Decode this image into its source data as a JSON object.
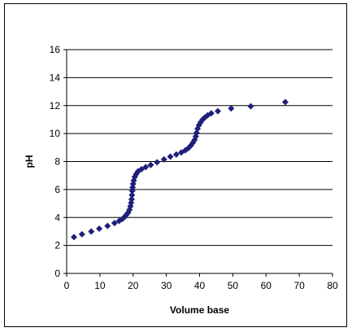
{
  "chart_data": {
    "type": "scatter",
    "title": "",
    "xlabel": "Volume base",
    "ylabel": "pH",
    "xlim": [
      0,
      80
    ],
    "ylim": [
      0,
      16
    ],
    "x_ticks": [
      0,
      10,
      20,
      30,
      40,
      50,
      60,
      70,
      80
    ],
    "y_ticks": [
      0,
      2,
      4,
      6,
      8,
      10,
      12,
      14,
      16
    ],
    "grid": "horizontal",
    "legend": "none",
    "marker": "diamond",
    "colors": {
      "marker": "#1f1f7a",
      "axis": "#000000",
      "grid": "#000000"
    },
    "series": [
      {
        "values": [
          [
            2.2,
            2.6
          ],
          [
            4.6,
            2.8
          ],
          [
            7.4,
            3.0
          ],
          [
            9.8,
            3.2
          ],
          [
            12.3,
            3.4
          ],
          [
            14.4,
            3.6
          ],
          [
            15.8,
            3.75
          ],
          [
            16.8,
            3.9
          ],
          [
            17.5,
            4.05
          ],
          [
            18.0,
            4.2
          ],
          [
            18.5,
            4.35
          ],
          [
            18.9,
            4.55
          ],
          [
            19.2,
            4.8
          ],
          [
            19.4,
            5.05
          ],
          [
            19.55,
            5.3
          ],
          [
            19.65,
            5.6
          ],
          [
            19.75,
            5.9
          ],
          [
            19.85,
            6.15
          ],
          [
            20.0,
            6.4
          ],
          [
            20.2,
            6.65
          ],
          [
            20.5,
            6.9
          ],
          [
            20.9,
            7.1
          ],
          [
            21.5,
            7.3
          ],
          [
            22.5,
            7.45
          ],
          [
            23.8,
            7.6
          ],
          [
            25.3,
            7.75
          ],
          [
            27.2,
            7.95
          ],
          [
            29.3,
            8.15
          ],
          [
            31.2,
            8.35
          ],
          [
            33.0,
            8.5
          ],
          [
            34.5,
            8.65
          ],
          [
            35.7,
            8.8
          ],
          [
            36.6,
            8.95
          ],
          [
            37.4,
            9.15
          ],
          [
            38.0,
            9.35
          ],
          [
            38.5,
            9.55
          ],
          [
            38.85,
            9.8
          ],
          [
            39.1,
            10.05
          ],
          [
            39.4,
            10.35
          ],
          [
            39.8,
            10.6
          ],
          [
            40.3,
            10.8
          ],
          [
            40.9,
            11.0
          ],
          [
            41.6,
            11.15
          ],
          [
            42.4,
            11.3
          ],
          [
            43.5,
            11.45
          ],
          [
            45.5,
            11.6
          ],
          [
            49.5,
            11.8
          ],
          [
            55.4,
            11.95
          ],
          [
            65.8,
            12.25
          ]
        ]
      }
    ]
  }
}
